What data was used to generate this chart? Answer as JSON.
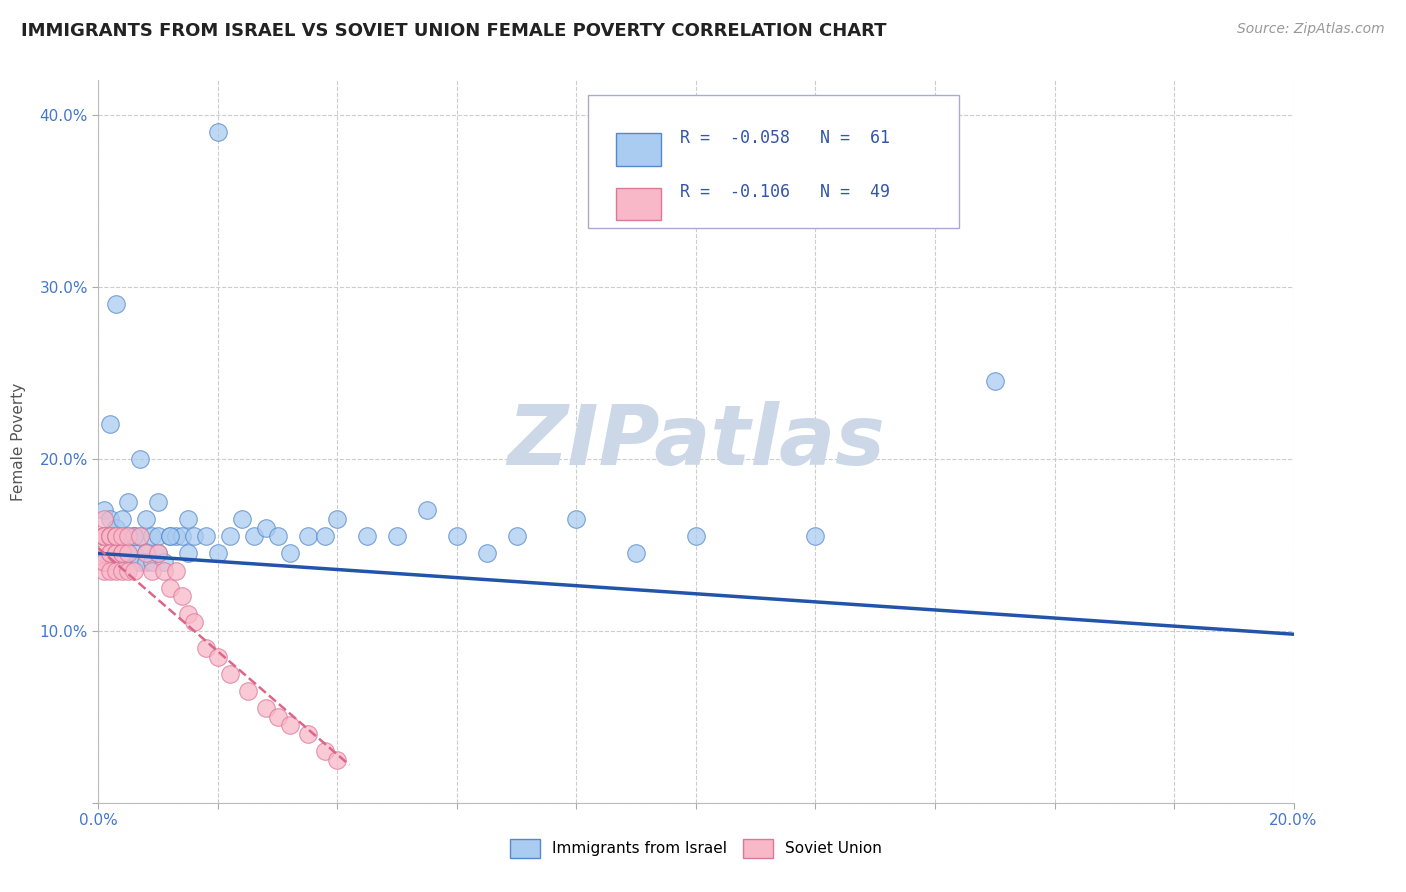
{
  "title": "IMMIGRANTS FROM ISRAEL VS SOVIET UNION FEMALE POVERTY CORRELATION CHART",
  "source": "Source: ZipAtlas.com",
  "ylabel": "Female Poverty",
  "xlim": [
    0.0,
    0.2
  ],
  "ylim": [
    0.0,
    0.42
  ],
  "xticks": [
    0.0,
    0.02,
    0.04,
    0.06,
    0.08,
    0.1,
    0.12,
    0.14,
    0.16,
    0.18,
    0.2
  ],
  "ytick_positions": [
    0.0,
    0.1,
    0.2,
    0.3,
    0.4
  ],
  "ytick_labels": [
    "",
    "10.0%",
    "20.0%",
    "30.0%",
    "40.0%"
  ],
  "israel_R": -0.058,
  "israel_N": 61,
  "soviet_R": -0.106,
  "soviet_N": 49,
  "israel_color": "#aaccf0",
  "soviet_color": "#f8b8c8",
  "israel_edge_color": "#5588cc",
  "soviet_edge_color": "#dd7799",
  "israel_line_color": "#2255aa",
  "soviet_line_color": "#dd6688",
  "legend_label_israel": "Immigrants from Israel",
  "legend_label_soviet": "Soviet Union",
  "watermark": "ZIPatlas",
  "watermark_color": "#ccd8e8",
  "background_color": "#ffffff",
  "grid_color": "#cccccc",
  "israel_scatter_x": [
    0.001,
    0.001,
    0.001,
    0.002,
    0.002,
    0.003,
    0.003,
    0.003,
    0.004,
    0.004,
    0.005,
    0.005,
    0.006,
    0.006,
    0.007,
    0.007,
    0.008,
    0.008,
    0.009,
    0.009,
    0.01,
    0.01,
    0.011,
    0.012,
    0.013,
    0.014,
    0.015,
    0.016,
    0.018,
    0.02,
    0.022,
    0.024,
    0.026,
    0.028,
    0.03,
    0.032,
    0.035,
    0.038,
    0.04,
    0.045,
    0.05,
    0.055,
    0.06,
    0.065,
    0.07,
    0.08,
    0.09,
    0.1,
    0.12,
    0.15,
    0.002,
    0.003,
    0.004,
    0.005,
    0.006,
    0.007,
    0.008,
    0.01,
    0.012,
    0.015,
    0.02
  ],
  "israel_scatter_y": [
    0.155,
    0.17,
    0.155,
    0.155,
    0.165,
    0.155,
    0.145,
    0.16,
    0.14,
    0.155,
    0.155,
    0.145,
    0.145,
    0.155,
    0.14,
    0.155,
    0.145,
    0.14,
    0.14,
    0.155,
    0.145,
    0.155,
    0.14,
    0.155,
    0.155,
    0.155,
    0.145,
    0.155,
    0.155,
    0.145,
    0.155,
    0.165,
    0.155,
    0.16,
    0.155,
    0.145,
    0.155,
    0.155,
    0.165,
    0.155,
    0.155,
    0.17,
    0.155,
    0.145,
    0.155,
    0.165,
    0.145,
    0.155,
    0.155,
    0.245,
    0.22,
    0.29,
    0.165,
    0.175,
    0.155,
    0.2,
    0.165,
    0.175,
    0.155,
    0.165,
    0.39
  ],
  "soviet_scatter_x": [
    0.001,
    0.001,
    0.001,
    0.001,
    0.001,
    0.001,
    0.001,
    0.001,
    0.001,
    0.002,
    0.002,
    0.002,
    0.002,
    0.002,
    0.002,
    0.003,
    0.003,
    0.003,
    0.003,
    0.003,
    0.003,
    0.004,
    0.004,
    0.004,
    0.004,
    0.005,
    0.005,
    0.005,
    0.006,
    0.007,
    0.008,
    0.009,
    0.01,
    0.011,
    0.012,
    0.013,
    0.014,
    0.015,
    0.016,
    0.018,
    0.02,
    0.022,
    0.025,
    0.028,
    0.03,
    0.032,
    0.035,
    0.038,
    0.04
  ],
  "soviet_scatter_y": [
    0.155,
    0.165,
    0.155,
    0.14,
    0.155,
    0.145,
    0.135,
    0.14,
    0.155,
    0.155,
    0.145,
    0.155,
    0.135,
    0.155,
    0.145,
    0.155,
    0.145,
    0.135,
    0.145,
    0.155,
    0.155,
    0.145,
    0.135,
    0.145,
    0.155,
    0.145,
    0.155,
    0.135,
    0.135,
    0.155,
    0.145,
    0.135,
    0.145,
    0.135,
    0.125,
    0.135,
    0.12,
    0.11,
    0.105,
    0.09,
    0.085,
    0.075,
    0.065,
    0.055,
    0.05,
    0.045,
    0.04,
    0.03,
    0.025
  ],
  "israel_trendline_x": [
    0.0,
    0.2
  ],
  "israel_trendline_y": [
    0.145,
    0.098
  ],
  "soviet_trendline_x": [
    0.0,
    0.042
  ],
  "soviet_trendline_y": [
    0.148,
    0.022
  ]
}
